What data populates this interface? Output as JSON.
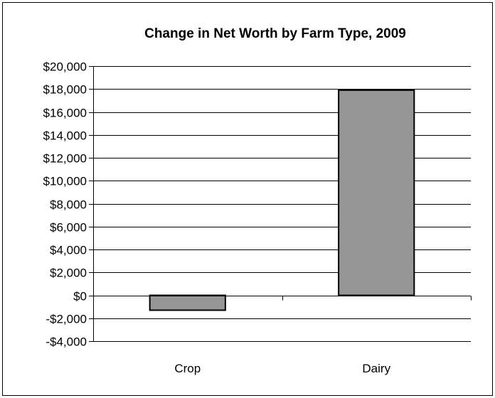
{
  "chart_data": {
    "type": "bar",
    "title": "Change in Net Worth by Farm Type, 2009",
    "xlabel": "",
    "ylabel": "",
    "categories": [
      "Crop",
      "Dairy"
    ],
    "values": [
      -1300,
      17900
    ],
    "ylim": [
      -4000,
      20000
    ],
    "yticks": [
      -4000,
      -2000,
      0,
      2000,
      4000,
      6000,
      8000,
      10000,
      12000,
      14000,
      16000,
      18000,
      20000
    ],
    "ytick_labels": [
      "-$4,000",
      "-$2,000",
      "$0",
      "$2,000",
      "$4,000",
      "$6,000",
      "$8,000",
      "$10,000",
      "$12,000",
      "$14,000",
      "$16,000",
      "$18,000",
      "$20,000"
    ],
    "grid": true,
    "legend": "none",
    "bar_color": "#969696",
    "bar_edge_color": "#000000"
  }
}
